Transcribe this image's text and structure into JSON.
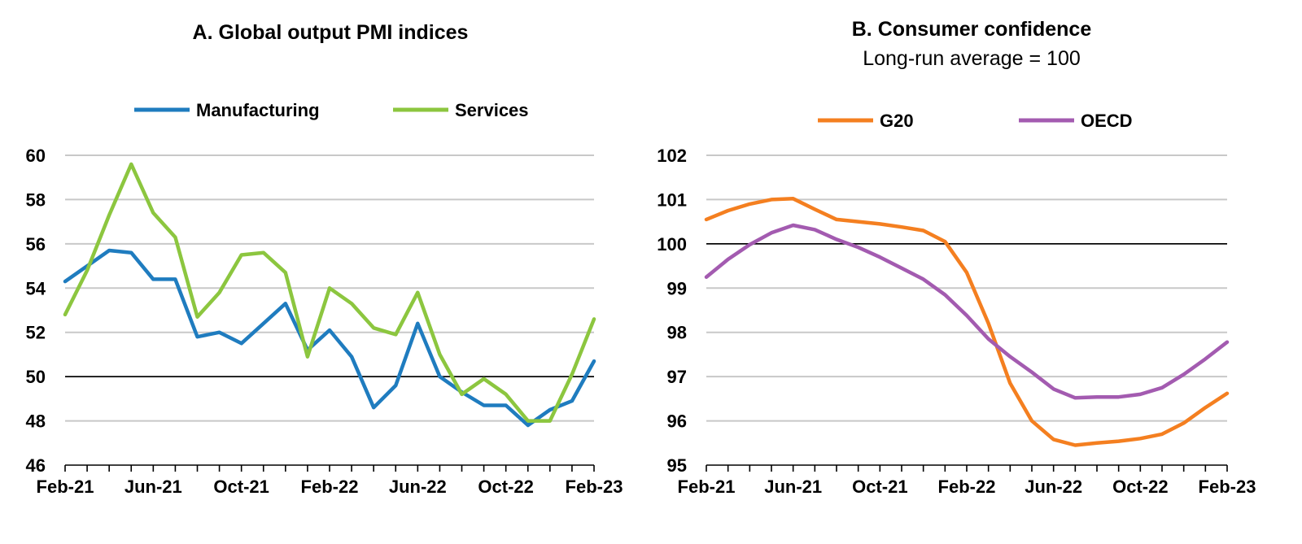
{
  "colors": {
    "manufacturing": "#1f7cbf",
    "services": "#8cc63f",
    "g20": "#f47f20",
    "oecd": "#a35bb0",
    "grid": "#c8c8c8",
    "reference": "#000000"
  },
  "chart_data": [
    {
      "type": "line",
      "title": "A. Global output PMI indices",
      "subtitle": "",
      "xlabel": "",
      "ylabel": "",
      "legend_position": "top",
      "grid": true,
      "ylim": [
        46,
        60
      ],
      "yticks": [
        46,
        48,
        50,
        52,
        54,
        56,
        58,
        60
      ],
      "reference_line": 50,
      "x": [
        "Feb-21",
        "Mar-21",
        "Apr-21",
        "May-21",
        "Jun-21",
        "Jul-21",
        "Aug-21",
        "Sep-21",
        "Oct-21",
        "Nov-21",
        "Dec-21",
        "Jan-22",
        "Feb-22",
        "Mar-22",
        "Apr-22",
        "May-22",
        "Jun-22",
        "Jul-22",
        "Aug-22",
        "Sep-22",
        "Oct-22",
        "Nov-22",
        "Dec-22",
        "Jan-23",
        "Feb-23"
      ],
      "xtick_labels": [
        "Feb-21",
        "Jun-21",
        "Oct-21",
        "Feb-22",
        "Jun-22",
        "Oct-22",
        "Feb-23"
      ],
      "series": [
        {
          "name": "Manufacturing",
          "color_key": "manufacturing",
          "values": [
            54.3,
            55.0,
            55.7,
            55.6,
            54.4,
            54.4,
            51.8,
            52.0,
            51.5,
            52.4,
            53.3,
            51.2,
            52.1,
            50.9,
            48.6,
            49.6,
            52.4,
            50.0,
            49.3,
            48.7,
            48.7,
            47.8,
            48.5,
            48.9,
            50.7
          ]
        },
        {
          "name": "Services",
          "color_key": "services",
          "values": [
            52.8,
            54.8,
            57.3,
            59.6,
            57.4,
            56.3,
            52.7,
            53.8,
            55.5,
            55.6,
            54.7,
            50.9,
            54.0,
            53.3,
            52.2,
            51.9,
            53.8,
            51.0,
            49.2,
            49.9,
            49.2,
            48.0,
            48.0,
            50.1,
            52.6
          ]
        }
      ]
    },
    {
      "type": "line",
      "title": "B. Consumer confidence",
      "subtitle": "Long-run average = 100",
      "xlabel": "",
      "ylabel": "",
      "legend_position": "top",
      "grid": true,
      "ylim": [
        95,
        102
      ],
      "yticks": [
        95,
        96,
        97,
        98,
        99,
        100,
        101,
        102
      ],
      "reference_line": 100,
      "x": [
        "Feb-21",
        "Mar-21",
        "Apr-21",
        "May-21",
        "Jun-21",
        "Jul-21",
        "Aug-21",
        "Sep-21",
        "Oct-21",
        "Nov-21",
        "Dec-21",
        "Jan-22",
        "Feb-22",
        "Mar-22",
        "Apr-22",
        "May-22",
        "Jun-22",
        "Jul-22",
        "Aug-22",
        "Sep-22",
        "Oct-22",
        "Nov-22",
        "Dec-22",
        "Jan-23",
        "Feb-23"
      ],
      "xtick_labels": [
        "Feb-21",
        "Jun-21",
        "Oct-21",
        "Feb-22",
        "Jun-22",
        "Oct-22",
        "Feb-23"
      ],
      "series": [
        {
          "name": "G20",
          "color_key": "g20",
          "values": [
            100.55,
            100.75,
            100.9,
            101.0,
            101.02,
            100.78,
            100.55,
            100.5,
            100.45,
            100.38,
            100.3,
            100.05,
            99.35,
            98.2,
            96.85,
            96.0,
            95.58,
            95.45,
            95.5,
            95.54,
            95.6,
            95.7,
            95.95,
            96.3,
            96.62
          ]
        },
        {
          "name": "OECD",
          "color_key": "oecd",
          "values": [
            99.25,
            99.65,
            99.98,
            100.25,
            100.42,
            100.32,
            100.1,
            99.92,
            99.7,
            99.45,
            99.2,
            98.85,
            98.38,
            97.85,
            97.45,
            97.1,
            96.72,
            96.52,
            96.54,
            96.54,
            96.6,
            96.75,
            97.05,
            97.4,
            97.78
          ]
        }
      ]
    }
  ]
}
